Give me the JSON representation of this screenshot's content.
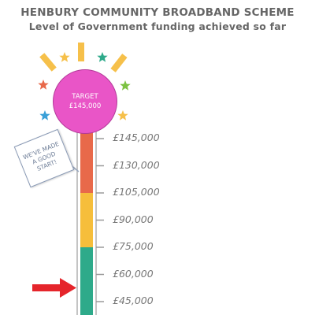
{
  "header": {
    "title": "HENBURY COMMUNITY BROADBAND SCHEME",
    "subtitle": "Level of Government funding achieved so far"
  },
  "target": {
    "line1": "TARGET",
    "line2": "£145,000"
  },
  "sign": {
    "lines": [
      "WE'VE MADE",
      "A GOOD",
      "START!"
    ]
  },
  "scale": {
    "ticks": [
      {
        "value": 145000,
        "label": "£145,000"
      },
      {
        "value": 130000,
        "label": "£130,000"
      },
      {
        "value": 105000,
        "label": "£105,000"
      },
      {
        "value": 90000,
        "label": "£90,000"
      },
      {
        "value": 75000,
        "label": "£75,000"
      },
      {
        "value": 60000,
        "label": "£60,000"
      },
      {
        "value": 45000,
        "label": "£45,000"
      }
    ],
    "bands": [
      {
        "name": "red",
        "color": "#e8694a",
        "from_tick": 0,
        "to_tick": 2
      },
      {
        "name": "yellow",
        "color": "#f6be3b",
        "from_tick": 2,
        "to_tick": 4
      },
      {
        "name": "teal",
        "color": "#2eaa8a",
        "from_tick": 4,
        "to_tick": 7
      }
    ]
  },
  "colors": {
    "arrow": "#e5252b",
    "target_fill": "#e955c7",
    "tube_outline": "#b0b0b0"
  },
  "decorations": [
    {
      "icon": "sunray-icon",
      "color": "#f6c04a"
    },
    {
      "icon": "star-icon",
      "color": "#f6c04a"
    },
    {
      "icon": "star-icon",
      "color": "#2eaa8a"
    },
    {
      "icon": "star-icon",
      "color": "#e8694a"
    },
    {
      "icon": "star-icon",
      "color": "#7cc242"
    },
    {
      "icon": "star-icon",
      "color": "#3aa0d8"
    }
  ]
}
